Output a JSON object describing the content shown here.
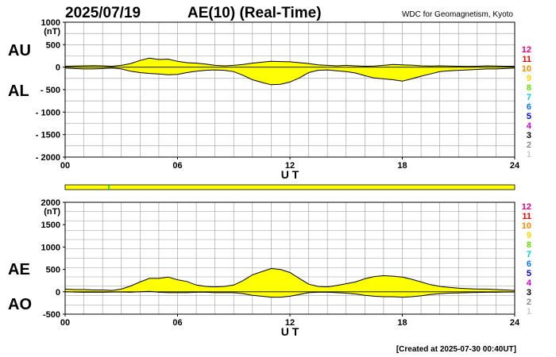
{
  "header": {
    "date": "2025/07/19",
    "title": "AE(10) (Real-Time)",
    "source": "WDC for Geomagnetism, Kyoto"
  },
  "footer": {
    "created": "[Created at 2025-07-30 00:40UT]"
  },
  "colors": {
    "fill": "#ffff00",
    "line": "#000000",
    "grid": "#9a9a9a",
    "bar_marker": "#00cc00"
  },
  "station_legend": [
    {
      "label": "12",
      "color": "#e6007e"
    },
    {
      "label": "11",
      "color": "#ff0000"
    },
    {
      "label": "10",
      "color": "#ff8c00"
    },
    {
      "label": "9",
      "color": "#ffd700"
    },
    {
      "label": "8",
      "color": "#66dd00"
    },
    {
      "label": "7",
      "color": "#00cccc"
    },
    {
      "label": "6",
      "color": "#0077ff"
    },
    {
      "label": "5",
      "color": "#0000cc"
    },
    {
      "label": "4",
      "color": "#cc00cc"
    },
    {
      "label": "3",
      "color": "#000000"
    },
    {
      "label": "2",
      "color": "#888888"
    },
    {
      "label": "1",
      "color": "#cccccc"
    }
  ],
  "chart_data": [
    {
      "type": "area",
      "name": "AU/AL",
      "series_labels": [
        "AU",
        "AL"
      ],
      "ylabel": "(nT)",
      "xlabel": "U T",
      "xlim": [
        0,
        24
      ],
      "ylim": [
        -2000,
        1000
      ],
      "yticks": [
        "1000",
        "500",
        "0",
        "- 500",
        "- 1000",
        "- 1500",
        "- 2000"
      ],
      "ytick_values": [
        1000,
        500,
        0,
        -500,
        -1000,
        -1500,
        -2000
      ],
      "xticks": [
        "00",
        "06",
        "12",
        "18",
        "24"
      ],
      "xtick_values": [
        0,
        6,
        12,
        18,
        24
      ],
      "x": [
        0,
        0.5,
        1,
        1.5,
        2,
        2.5,
        3,
        3.5,
        4,
        4.5,
        5,
        5.5,
        6,
        6.5,
        7,
        7.5,
        8,
        8.5,
        9,
        9.5,
        10,
        10.5,
        11,
        11.5,
        12,
        12.5,
        13,
        13.5,
        14,
        14.5,
        15,
        15.5,
        16,
        16.5,
        17,
        17.5,
        18,
        18.5,
        19,
        19.5,
        20,
        20.5,
        21,
        21.5,
        22,
        22.5,
        23,
        23.5,
        24
      ],
      "upper": [
        20,
        25,
        30,
        35,
        30,
        20,
        40,
        80,
        150,
        200,
        170,
        180,
        130,
        100,
        90,
        70,
        40,
        30,
        40,
        60,
        90,
        110,
        130,
        125,
        120,
        100,
        80,
        50,
        40,
        30,
        40,
        30,
        20,
        25,
        40,
        60,
        50,
        45,
        30,
        25,
        30,
        25,
        20,
        15,
        20,
        30,
        25,
        20,
        20
      ],
      "lower": [
        -20,
        -30,
        -40,
        -40,
        -30,
        -20,
        -40,
        -90,
        -120,
        -140,
        -150,
        -170,
        -160,
        -120,
        -90,
        -70,
        -60,
        -70,
        -100,
        -180,
        -280,
        -340,
        -390,
        -380,
        -330,
        -240,
        -120,
        -70,
        -60,
        -80,
        -100,
        -130,
        -190,
        -240,
        -260,
        -280,
        -310,
        -260,
        -200,
        -150,
        -100,
        -80,
        -70,
        -60,
        -50,
        -40,
        -40,
        -30,
        -20
      ]
    },
    {
      "type": "area",
      "name": "AE/AO",
      "series_labels": [
        "AE",
        "AO"
      ],
      "ylabel": "(nT)",
      "xlabel": "U T",
      "xlim": [
        0,
        24
      ],
      "ylim": [
        -500,
        2000
      ],
      "yticks": [
        "2000",
        "1500",
        "1000",
        "500",
        "0",
        "-500"
      ],
      "ytick_values": [
        2000,
        1500,
        1000,
        500,
        0,
        -500
      ],
      "xticks": [
        "00",
        "06",
        "12",
        "18",
        "24"
      ],
      "xtick_values": [
        0,
        6,
        12,
        18,
        24
      ],
      "x": [
        0,
        0.5,
        1,
        1.5,
        2,
        2.5,
        3,
        3.5,
        4,
        4.5,
        5,
        5.5,
        6,
        6.5,
        7,
        7.5,
        8,
        8.5,
        9,
        9.5,
        10,
        10.5,
        11,
        11.5,
        12,
        12.5,
        13,
        13.5,
        14,
        14.5,
        15,
        15.5,
        16,
        16.5,
        17,
        17.5,
        18,
        18.5,
        19,
        19.5,
        20,
        20.5,
        21,
        21.5,
        22,
        22.5,
        23,
        23.5,
        24
      ],
      "upper": [
        60,
        50,
        50,
        40,
        40,
        30,
        60,
        130,
        220,
        300,
        300,
        330,
        270,
        230,
        150,
        120,
        110,
        120,
        150,
        250,
        380,
        450,
        520,
        500,
        430,
        300,
        170,
        120,
        110,
        140,
        180,
        220,
        290,
        340,
        360,
        350,
        330,
        280,
        220,
        160,
        120,
        100,
        80,
        70,
        60,
        60,
        50,
        40,
        30
      ],
      "lower": [
        0,
        -5,
        -10,
        -10,
        -10,
        -5,
        -5,
        -10,
        0,
        10,
        -10,
        -20,
        -20,
        -20,
        -10,
        -10,
        -20,
        -20,
        -20,
        -40,
        -80,
        -100,
        -120,
        -120,
        -100,
        -60,
        -20,
        -10,
        -10,
        -20,
        -30,
        -50,
        -80,
        -100,
        -110,
        -110,
        -120,
        -110,
        -90,
        -60,
        -40,
        -30,
        -25,
        -20,
        -15,
        -10,
        -10,
        -5,
        -5
      ]
    }
  ]
}
